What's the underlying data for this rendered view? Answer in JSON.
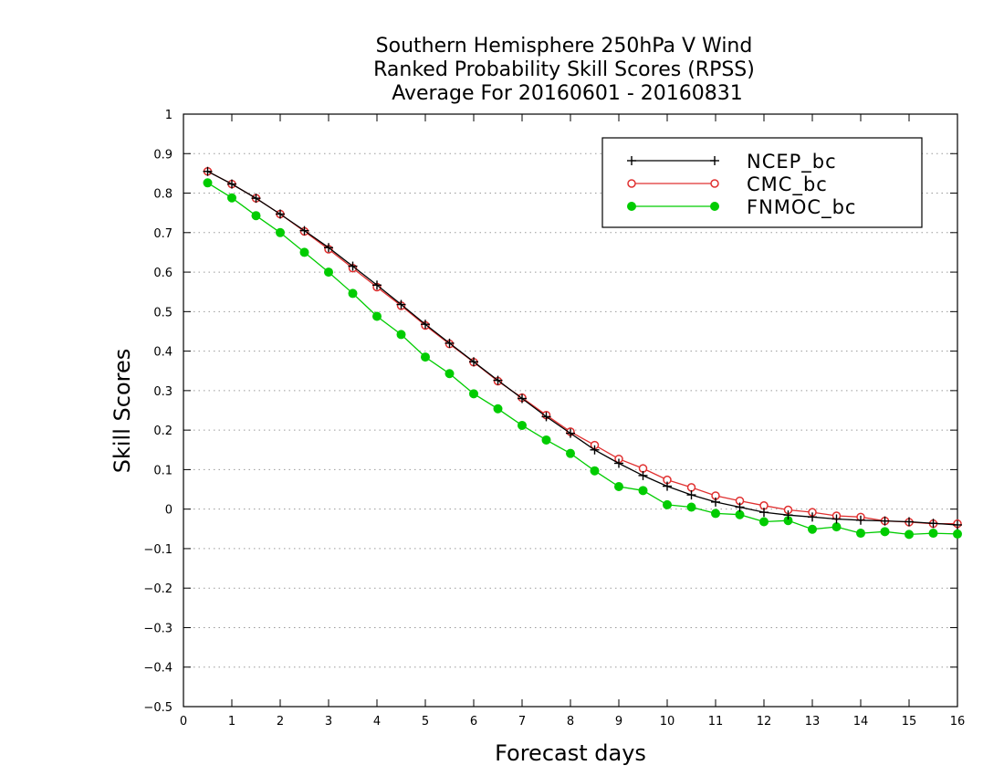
{
  "chart_data": {
    "type": "line",
    "title": [
      "Southern Hemisphere 250hPa V Wind",
      "Ranked Probability Skill Scores (RPSS)",
      " Average For 20160601 - 20160831"
    ],
    "xlabel": "Forecast days",
    "ylabel": "Skill Scores",
    "xlim": [
      0,
      16
    ],
    "ylim": [
      -0.5,
      1
    ],
    "xticks": [
      "0",
      "1",
      "2",
      "3",
      "4",
      "5",
      "6",
      "7",
      "8",
      "9",
      "10",
      "11",
      "12",
      "13",
      "14",
      "15",
      "16"
    ],
    "yticks": [
      "−0.5",
      "−0.4",
      "−0.3",
      "−0.2",
      "−0.1",
      "0",
      "0.1",
      "0.2",
      "0.3",
      "0.4",
      "0.5",
      "0.6",
      "0.7",
      "0.8",
      "0.9",
      "1"
    ],
    "grid": "horizontal dotted",
    "legend_position": "top-right",
    "x": [
      0.5,
      1,
      1.5,
      2,
      2.5,
      3,
      3.5,
      4,
      4.5,
      5,
      5.5,
      6,
      6.5,
      7,
      7.5,
      8,
      8.5,
      9,
      9.5,
      10,
      10.5,
      11,
      11.5,
      12,
      12.5,
      13,
      13.5,
      14,
      14.5,
      15,
      15.5,
      16
    ],
    "series": [
      {
        "name": "NCEP_bc",
        "color": "#000000",
        "marker": "plus",
        "values": [
          0.855,
          0.823,
          0.787,
          0.747,
          0.705,
          0.662,
          0.615,
          0.567,
          0.518,
          0.468,
          0.42,
          0.373,
          0.326,
          0.28,
          0.234,
          0.192,
          0.15,
          0.116,
          0.085,
          0.058,
          0.036,
          0.018,
          0.005,
          -0.008,
          -0.015,
          -0.02,
          -0.025,
          -0.028,
          -0.03,
          -0.032,
          -0.036,
          -0.04
        ]
      },
      {
        "name": "CMC_bc",
        "color": "#e03030",
        "marker": "open-circle",
        "values": [
          0.855,
          0.823,
          0.787,
          0.747,
          0.703,
          0.658,
          0.61,
          0.562,
          0.515,
          0.465,
          0.418,
          0.372,
          0.324,
          0.282,
          0.238,
          0.196,
          0.162,
          0.127,
          0.103,
          0.074,
          0.055,
          0.034,
          0.021,
          0.009,
          -0.002,
          -0.008,
          -0.017,
          -0.02,
          -0.03,
          -0.033,
          -0.037,
          -0.037
        ]
      },
      {
        "name": "FNMOC_bc",
        "color": "#00cc00",
        "marker": "filled-circle",
        "values": [
          0.826,
          0.788,
          0.743,
          0.7,
          0.65,
          0.6,
          0.546,
          0.488,
          0.442,
          0.385,
          0.343,
          0.292,
          0.254,
          0.212,
          0.175,
          0.141,
          0.097,
          0.057,
          0.047,
          0.011,
          0.005,
          -0.011,
          -0.014,
          -0.032,
          -0.029,
          -0.051,
          -0.045,
          -0.061,
          -0.057,
          -0.064,
          -0.061,
          -0.063
        ]
      }
    ]
  }
}
